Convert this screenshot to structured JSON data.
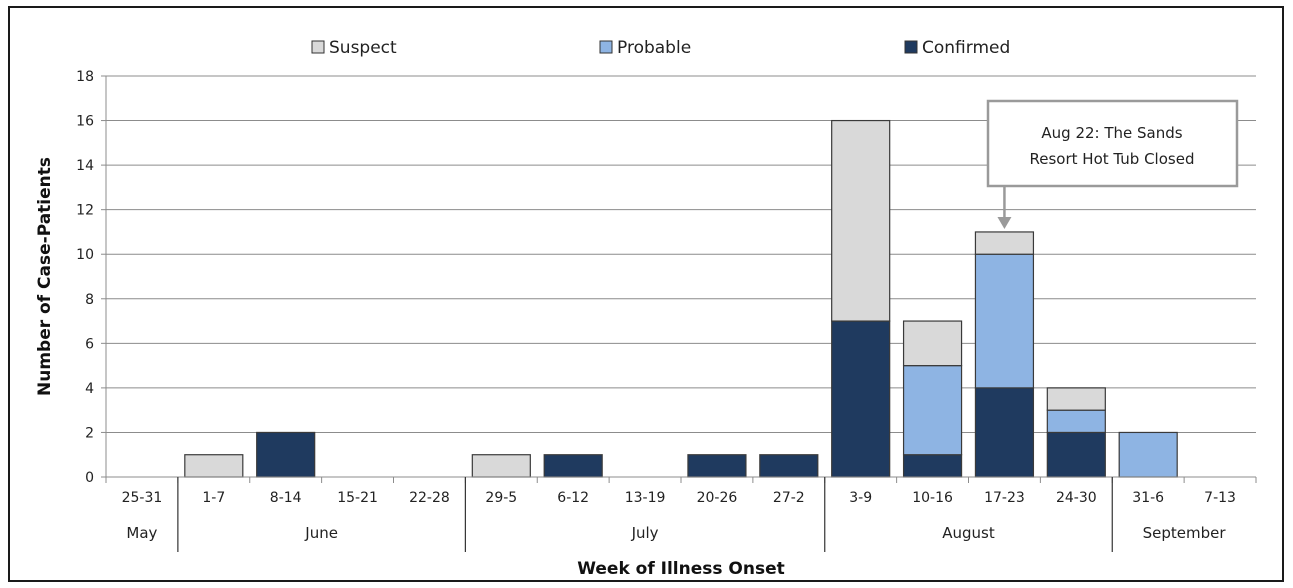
{
  "chart_data": {
    "type": "bar",
    "stacked": true,
    "categories": [
      "25-31",
      "1-7",
      "8-14",
      "15-21",
      "22-28",
      "29-5",
      "6-12",
      "13-19",
      "20-26",
      "27-2",
      "3-9",
      "10-16",
      "17-23",
      "24-30",
      "31-6",
      "7-13"
    ],
    "month_groups": [
      {
        "label": "May",
        "start": 0,
        "end": 0
      },
      {
        "label": "June",
        "start": 1,
        "end": 4
      },
      {
        "label": "July",
        "start": 5,
        "end": 9
      },
      {
        "label": "August",
        "start": 10,
        "end": 13
      },
      {
        "label": "September",
        "start": 14,
        "end": 15
      }
    ],
    "series": [
      {
        "name": "Confirmed",
        "color": "#1f3a5f",
        "values": [
          0,
          0,
          2,
          0,
          0,
          0,
          1,
          0,
          1,
          1,
          7,
          1,
          4,
          2,
          0,
          0
        ]
      },
      {
        "name": "Probable",
        "color": "#8eb4e3",
        "values": [
          0,
          0,
          0,
          0,
          0,
          0,
          0,
          0,
          0,
          0,
          0,
          4,
          6,
          1,
          2,
          0
        ]
      },
      {
        "name": "Suspect",
        "color": "#d9d9d9",
        "values": [
          0,
          1,
          0,
          0,
          0,
          1,
          0,
          0,
          0,
          0,
          9,
          2,
          1,
          1,
          0,
          0
        ]
      }
    ],
    "legend_order": [
      "Suspect",
      "Probable",
      "Confirmed"
    ],
    "legend_position": "top",
    "xlabel": "Week of Illness Onset",
    "ylabel": "Number of Case-Patients",
    "ylim": [
      0,
      18
    ],
    "yticks": [
      0,
      2,
      4,
      6,
      8,
      10,
      12,
      14,
      16,
      18
    ],
    "grid": true,
    "annotation": {
      "lines": [
        "Aug 22: The Sands",
        "Resort Hot Tub Closed"
      ],
      "category_index": 12
    }
  }
}
